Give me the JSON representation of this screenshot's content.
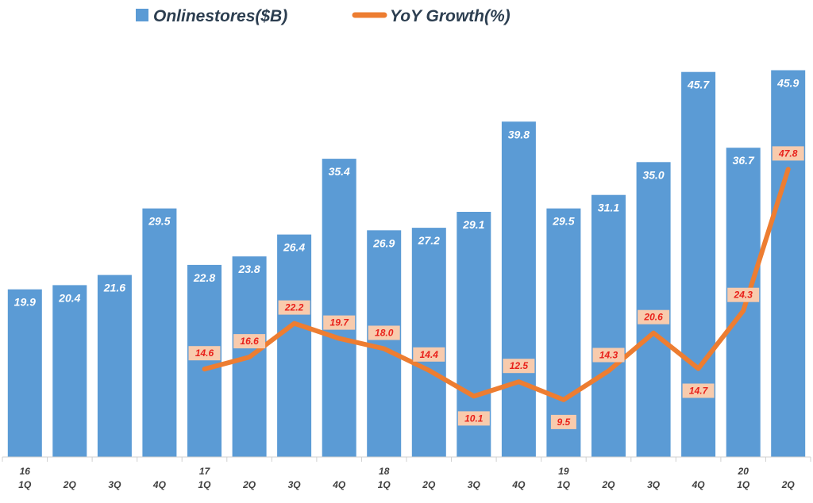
{
  "chart_data": {
    "type": "bar",
    "title": "",
    "xlabel": "",
    "ylabel": "",
    "ylim": [
      0,
      50
    ],
    "ylim_secondary": [
      0,
      70
    ],
    "grid": false,
    "legend_position": "top-center",
    "categories": [
      {
        "year": "16",
        "quarter": "1Q"
      },
      {
        "year": "",
        "quarter": "2Q"
      },
      {
        "year": "",
        "quarter": "3Q"
      },
      {
        "year": "",
        "quarter": "4Q"
      },
      {
        "year": "17",
        "quarter": "1Q"
      },
      {
        "year": "",
        "quarter": "2Q"
      },
      {
        "year": "",
        "quarter": "3Q"
      },
      {
        "year": "",
        "quarter": "4Q"
      },
      {
        "year": "18",
        "quarter": "1Q"
      },
      {
        "year": "",
        "quarter": "2Q"
      },
      {
        "year": "",
        "quarter": "3Q"
      },
      {
        "year": "",
        "quarter": "4Q"
      },
      {
        "year": "19",
        "quarter": "1Q"
      },
      {
        "year": "",
        "quarter": "2Q"
      },
      {
        "year": "",
        "quarter": "3Q"
      },
      {
        "year": "",
        "quarter": "4Q"
      },
      {
        "year": "20",
        "quarter": "1Q"
      },
      {
        "year": "",
        "quarter": "2Q"
      }
    ],
    "series": [
      {
        "name": "Onlinestores($B)",
        "type": "bar",
        "color": "#5b9bd5",
        "values": [
          19.9,
          20.4,
          21.6,
          29.5,
          22.8,
          23.8,
          26.4,
          35.4,
          26.9,
          27.2,
          29.1,
          39.8,
          29.5,
          31.1,
          35.0,
          45.7,
          36.7,
          45.9
        ]
      },
      {
        "name": "YoY Growth(%)",
        "type": "line",
        "color": "#ed7d31",
        "values": [
          null,
          null,
          null,
          null,
          14.6,
          16.6,
          22.2,
          19.7,
          18.0,
          14.4,
          10.1,
          12.5,
          9.5,
          14.3,
          20.6,
          14.7,
          24.3,
          47.8
        ]
      }
    ]
  }
}
